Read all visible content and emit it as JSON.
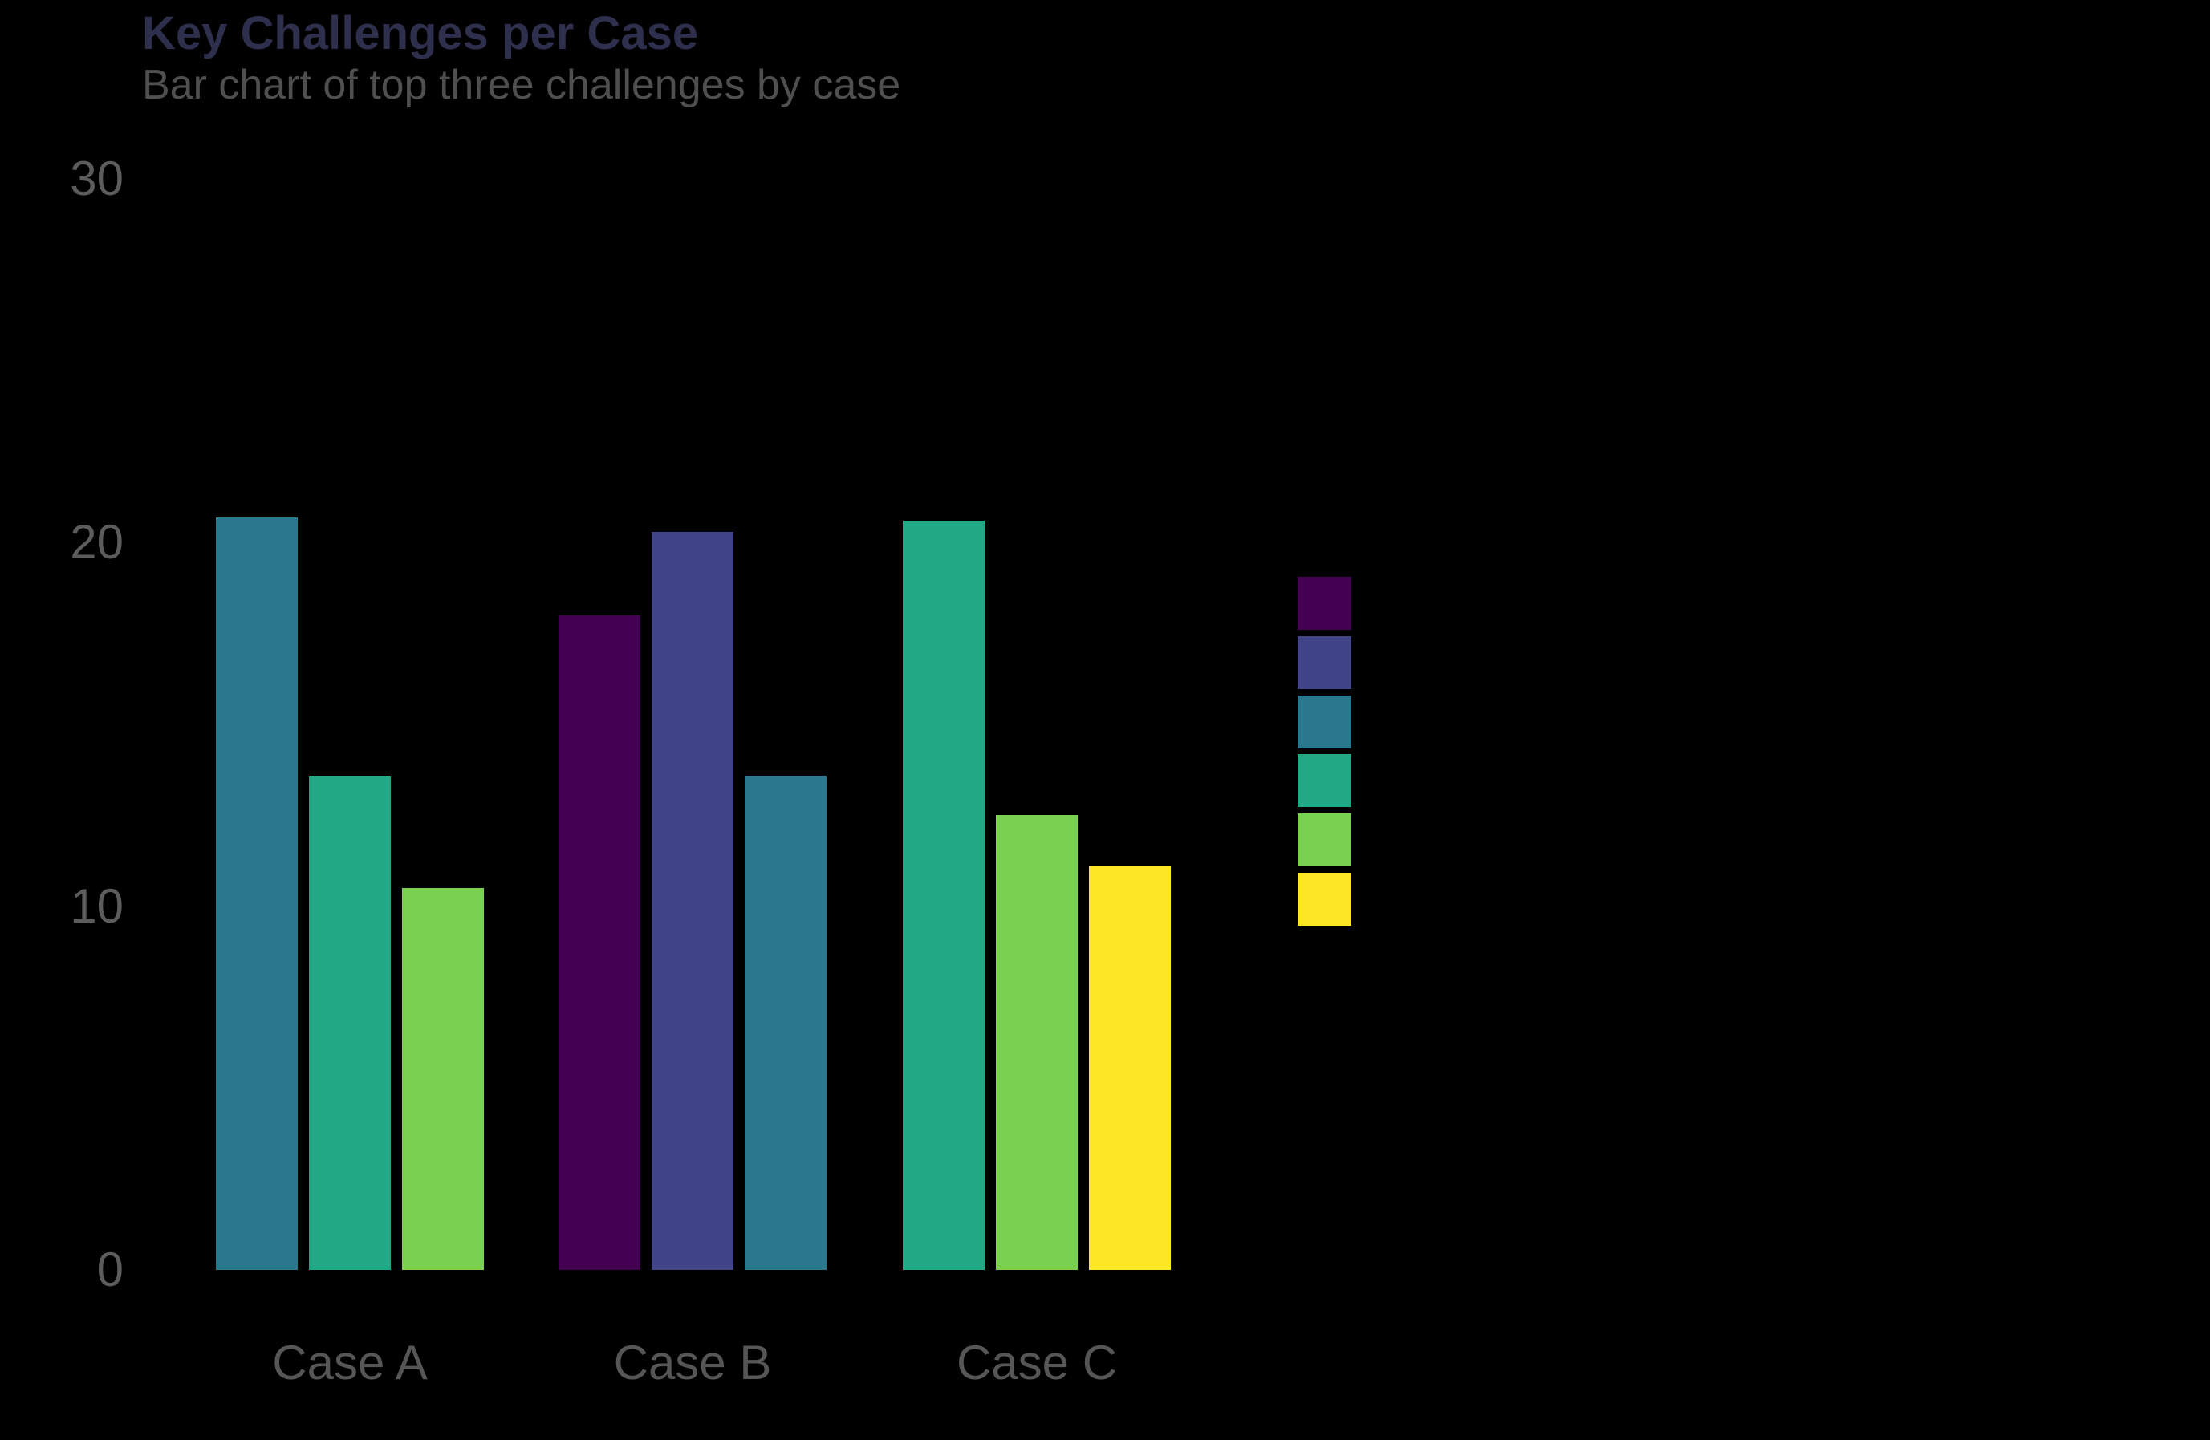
{
  "page": {
    "background_color": "#000000"
  },
  "header": {
    "title": "Key Challenges per Case",
    "subtitle": "Bar chart of top three challenges by case",
    "title_color": "#2e2e4d",
    "subtitle_color": "#4f4f4f"
  },
  "chart_data": {
    "type": "bar",
    "title": "Key Challenges per Case",
    "subtitle": "Bar chart of top three challenges by case",
    "xlabel": "",
    "ylabel": "",
    "categories": [
      "Case A",
      "Case B",
      "Case C"
    ],
    "groups": [
      {
        "category": "Case A",
        "bars": [
          {
            "value": 20.7,
            "color": "#2a788e"
          },
          {
            "value": 13.6,
            "color": "#22a884"
          },
          {
            "value": 10.5,
            "color": "#7ad151"
          }
        ]
      },
      {
        "category": "Case B",
        "bars": [
          {
            "value": 18.0,
            "color": "#440154"
          },
          {
            "value": 20.3,
            "color": "#414487"
          },
          {
            "value": 13.6,
            "color": "#2a788e"
          }
        ]
      },
      {
        "category": "Case C",
        "bars": [
          {
            "value": 20.6,
            "color": "#22a884"
          },
          {
            "value": 12.5,
            "color": "#7ad151"
          },
          {
            "value": 11.1,
            "color": "#fde725"
          }
        ]
      }
    ],
    "y_axis": {
      "ticks": [
        0,
        10,
        20,
        30
      ],
      "min": 0,
      "max": 30,
      "tick_color": "#5c5c5c"
    },
    "x_axis": {
      "label_color": "#565656"
    },
    "grid": false,
    "axis_lines_visible": false,
    "legend": {
      "position": "right-center",
      "labels_visible": false,
      "swatch_colors": [
        "#440154",
        "#414487",
        "#2a788e",
        "#22a884",
        "#7ad151",
        "#fde725"
      ]
    }
  }
}
